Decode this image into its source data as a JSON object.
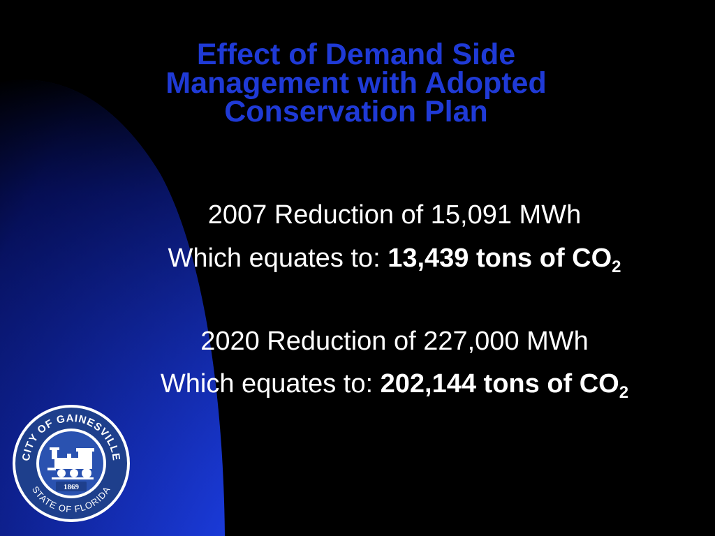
{
  "slide": {
    "background_color": "#000000",
    "arc_gradient": [
      "#1a3ad8",
      "#061060",
      "#000000"
    ],
    "title_color": "#1f3ad6",
    "title_lines": [
      "Effect of Demand Side",
      "Management with Adopted",
      "Conservation Plan"
    ],
    "items": [
      {
        "reduction": "2007 Reduction of 15,091 MWh",
        "equates_prefix": "Which equates to: ",
        "equates_value": "13,439 tons of CO",
        "subscript": "2"
      },
      {
        "reduction": "2020 Reduction of 227,000 MWh",
        "equates_prefix": "Which equates to: ",
        "equates_value": "202,144 tons of CO",
        "subscript": "2"
      }
    ]
  },
  "seal": {
    "top_text": "CITY OF GAINESVILLE",
    "bottom_text": "STATE OF FLORIDA",
    "year": "1869",
    "icon": "locomotive-icon",
    "colors": [
      "#1e3f8c",
      "#ffffff",
      "#2a52b0"
    ]
  }
}
